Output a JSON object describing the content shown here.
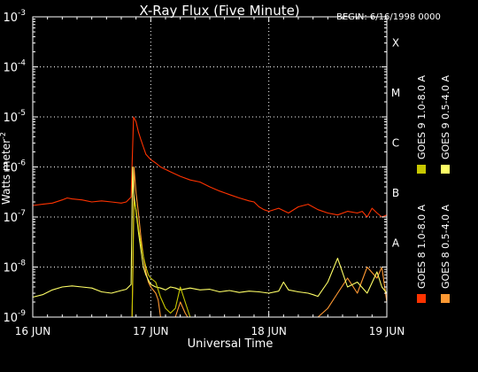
{
  "chart_data": {
    "type": "line",
    "title": "X-Ray Flux (Five Minute)",
    "begin_label": "BEGIN: 6/16/1998 0000",
    "xlabel": "Universal Time",
    "ylabel": "Watts meter",
    "ylabel_sup": "-2",
    "x_unit": "hours since begin",
    "xlim": [
      0,
      72
    ],
    "x_ticks": [
      {
        "x": 0,
        "label": "16 JUN"
      },
      {
        "x": 24,
        "label": "17 JUN"
      },
      {
        "x": 48,
        "label": "18 JUN"
      },
      {
        "x": 72,
        "label": "19 JUN"
      }
    ],
    "y_scale": "log",
    "ylim": [
      1e-09,
      0.001
    ],
    "y_ticks": [
      {
        "value": 1e-09,
        "base": "10",
        "exp": "-9"
      },
      {
        "value": 1e-08,
        "base": "10",
        "exp": "-8"
      },
      {
        "value": 1e-07,
        "base": "10",
        "exp": "-7"
      },
      {
        "value": 1e-06,
        "base": "10",
        "exp": "-6"
      },
      {
        "value": 1e-05,
        "base": "10",
        "exp": "-5"
      },
      {
        "value": 0.0001,
        "base": "10",
        "exp": "-4"
      },
      {
        "value": 0.001,
        "base": "10",
        "exp": "-3"
      }
    ],
    "flare_classes": [
      {
        "label": "A",
        "value": 1e-08
      },
      {
        "label": "B",
        "value": 1e-07
      },
      {
        "label": "C",
        "value": 1e-06
      },
      {
        "label": "M",
        "value": 1e-05
      },
      {
        "label": "X",
        "value": 0.0001
      }
    ],
    "grid": "dotted",
    "legend_placement": "right-vertical",
    "series": [
      {
        "name": "GOES 8 1.0-8.0 A",
        "color": "#ff3300",
        "x": [
          0,
          2,
          4,
          6,
          7,
          8,
          10,
          12,
          14,
          16,
          18,
          19,
          20,
          20.5,
          21,
          21.5,
          22,
          22.5,
          23,
          24,
          25,
          26,
          28,
          30,
          32,
          34,
          36,
          38,
          40,
          42,
          44,
          45,
          46,
          47,
          48,
          50,
          52,
          54,
          56,
          58,
          60,
          62,
          64,
          66,
          67,
          68,
          69,
          70,
          71,
          72
        ],
        "y": [
          1.7e-07,
          1.8e-07,
          1.9e-07,
          2.2e-07,
          2.4e-07,
          2.3e-07,
          2.2e-07,
          2e-07,
          2.1e-07,
          2e-07,
          1.9e-07,
          2e-07,
          2.5e-07,
          1e-05,
          8e-06,
          5e-06,
          3.5e-06,
          2.5e-06,
          1.8e-06,
          1.4e-06,
          1.2e-06,
          1e-06,
          8e-07,
          6.5e-07,
          5.5e-07,
          5e-07,
          4e-07,
          3.3e-07,
          2.8e-07,
          2.4e-07,
          2.1e-07,
          2e-07,
          1.6e-07,
          1.4e-07,
          1.3e-07,
          1.5e-07,
          1.2e-07,
          1.6e-07,
          1.8e-07,
          1.4e-07,
          1.2e-07,
          1.1e-07,
          1.3e-07,
          1.2e-07,
          1.3e-07,
          1e-07,
          1.5e-07,
          1.2e-07,
          1e-07,
          1.1e-07
        ]
      },
      {
        "name": "GOES 8 0.5-4.0 A",
        "color": "#ff9933",
        "x": [
          20.2,
          20.4,
          20.6,
          21,
          21.5,
          22,
          22.5,
          23,
          23.5,
          24,
          25,
          25.5,
          26,
          28,
          29,
          30,
          31,
          31.5,
          32,
          35,
          38,
          39,
          40,
          42,
          44,
          46,
          48,
          50,
          52,
          54,
          56,
          58,
          60,
          62,
          64,
          66,
          68,
          70,
          71,
          72
        ],
        "y": [
          1e-09,
          1e-08,
          1e-06,
          3e-07,
          1.2e-07,
          4e-08,
          1.6e-08,
          8e-09,
          5e-09,
          4e-09,
          3e-09,
          2.2e-09,
          1e-09,
          1e-09,
          1e-09,
          2e-09,
          1.2e-09,
          1e-09,
          1e-09,
          1e-09,
          1e-09,
          1e-09,
          1e-09,
          1e-09,
          1e-09,
          1e-09,
          1e-09,
          1e-09,
          1e-09,
          1e-09,
          1e-09,
          1e-09,
          1.5e-09,
          3e-09,
          6e-09,
          3e-09,
          1e-08,
          6e-09,
          1e-08,
          2e-09
        ]
      },
      {
        "name": "GOES 9 0.5-4.0 A",
        "color": "#ffff66",
        "x": [
          0,
          2,
          4,
          6,
          8,
          10,
          12,
          14,
          16,
          18,
          19,
          20,
          20.3,
          20.5,
          21,
          21.5,
          22,
          22.5,
          23,
          23.5,
          24,
          25,
          26,
          27,
          28,
          29,
          30,
          32,
          34,
          36,
          38,
          40,
          42,
          44,
          46,
          48,
          50,
          51,
          52,
          54,
          56,
          57,
          58,
          60,
          62,
          64,
          66,
          68,
          70,
          71,
          72
        ],
        "y": [
          2.5e-09,
          2.8e-09,
          3.5e-09,
          4e-09,
          4.2e-09,
          4e-09,
          3.8e-09,
          3.2e-09,
          3e-09,
          3.4e-09,
          3.6e-09,
          4.5e-09,
          1e-06,
          3e-07,
          1.3e-07,
          5e-08,
          2.2e-08,
          1e-08,
          7e-09,
          5.5e-09,
          4.5e-09,
          4e-09,
          3.8e-09,
          3.5e-09,
          4e-09,
          3.8e-09,
          3.5e-09,
          3.8e-09,
          3.5e-09,
          3.6e-09,
          3.2e-09,
          3.4e-09,
          3.1e-09,
          3.3e-09,
          3.2e-09,
          3e-09,
          3.3e-09,
          5e-09,
          3.5e-09,
          3.2e-09,
          3e-09,
          2.8e-09,
          2.6e-09,
          5e-09,
          1.5e-08,
          4e-09,
          5e-09,
          3e-09,
          8e-09,
          4e-09,
          3e-09
        ]
      },
      {
        "name": "GOES 9 1.0-8.0 A",
        "color": "#c8c800",
        "x": [
          20.2,
          20.4,
          20.6,
          21,
          21.5,
          22,
          22.5,
          23,
          23.5,
          24,
          25,
          25.5,
          26,
          27,
          28,
          29,
          30,
          31,
          32,
          34,
          36,
          38,
          40,
          42,
          44,
          46,
          48,
          50,
          52,
          54,
          56,
          58,
          60,
          62,
          64,
          66,
          68,
          70,
          72
        ],
        "y": [
          1e-09,
          2e-08,
          2e-07,
          1.4e-07,
          6e-08,
          3e-08,
          1.6e-08,
          1e-08,
          7e-09,
          6e-09,
          5e-09,
          3.5e-09,
          2.5e-09,
          1.5e-09,
          1.2e-09,
          1.5e-09,
          4e-09,
          2e-09,
          1e-09,
          1e-09,
          1e-09,
          1e-09,
          1e-09,
          1e-09,
          1e-09,
          1e-09,
          1e-09,
          1e-09,
          1e-09,
          1e-09,
          1e-09,
          1e-09,
          1e-09,
          1e-09,
          1e-09,
          1e-09,
          1e-09,
          1e-09,
          1e-09
        ]
      }
    ]
  }
}
